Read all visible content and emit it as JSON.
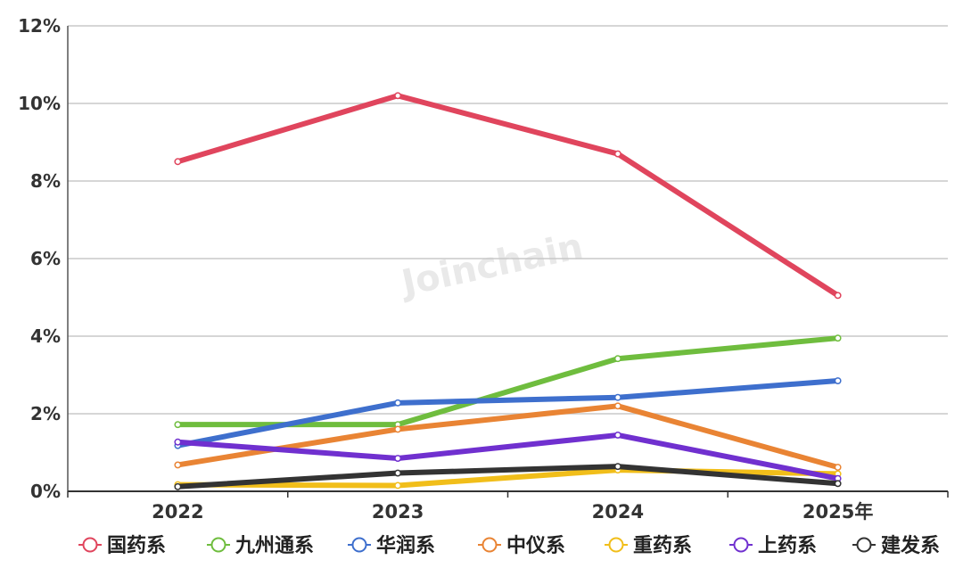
{
  "watermark": "Joinchain",
  "chart_data": {
    "type": "line",
    "categories": [
      "2022",
      "2023",
      "2024",
      "2025年"
    ],
    "y_ticks": [
      "0%",
      "2%",
      "4%",
      "6%",
      "8%",
      "10%",
      "12%"
    ],
    "ylim": [
      0,
      12
    ],
    "y_unit": "%",
    "grid": true,
    "legend_position": "bottom",
    "series": [
      {
        "name": "国药系",
        "color": "#e0455d",
        "values": [
          8.5,
          10.2,
          8.7,
          5.05
        ]
      },
      {
        "name": "九州通系",
        "color": "#6fbd3e",
        "values": [
          1.72,
          1.72,
          3.42,
          3.95
        ]
      },
      {
        "name": "华润系",
        "color": "#3e6fcd",
        "values": [
          1.18,
          2.28,
          2.42,
          2.85
        ]
      },
      {
        "name": "中仪系",
        "color": "#e98434",
        "values": [
          0.68,
          1.6,
          2.2,
          0.62
        ]
      },
      {
        "name": "重药系",
        "color": "#f1be1a",
        "values": [
          0.17,
          0.15,
          0.55,
          0.45
        ]
      },
      {
        "name": "上药系",
        "color": "#7030cf",
        "values": [
          1.27,
          0.85,
          1.45,
          0.33
        ]
      },
      {
        "name": "建发系",
        "color": "#333333",
        "values": [
          0.12,
          0.47,
          0.64,
          0.2
        ]
      }
    ]
  }
}
